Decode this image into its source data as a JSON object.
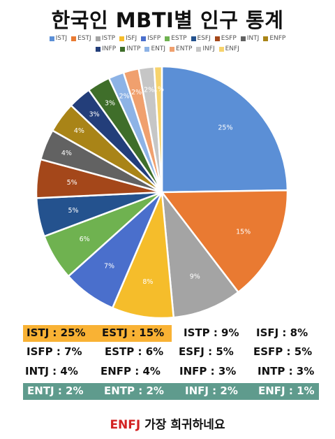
{
  "title": "한국인 MBTI별 인구 통계",
  "chart_data": {
    "type": "pie",
    "title": "한국인 MBTI별 인구 통계",
    "legend_position": "top",
    "slices": [
      {
        "name": "ISTJ",
        "value": 25,
        "label": "25%",
        "color": "#5b8fd6"
      },
      {
        "name": "ESTJ",
        "value": 15,
        "label": "15%",
        "color": "#e97a32"
      },
      {
        "name": "ISTP",
        "value": 9,
        "label": "9%",
        "color": "#a4a4a4"
      },
      {
        "name": "ISFJ",
        "value": 8,
        "label": "8%",
        "color": "#f5bd2b"
      },
      {
        "name": "ISFP",
        "value": 7,
        "label": "7%",
        "color": "#4a6fcc"
      },
      {
        "name": "ESTP",
        "value": 6,
        "label": "6%",
        "color": "#6fb250"
      },
      {
        "name": "ESFJ",
        "value": 5,
        "label": "5%",
        "color": "#24528e"
      },
      {
        "name": "ESFP",
        "value": 5,
        "label": "5%",
        "color": "#a4471a"
      },
      {
        "name": "INTJ",
        "value": 4,
        "label": "4%",
        "color": "#626262"
      },
      {
        "name": "ENFP",
        "value": 4,
        "label": "4%",
        "color": "#a98417"
      },
      {
        "name": "INFP",
        "value": 3,
        "label": "3%",
        "color": "#233e7a"
      },
      {
        "name": "INTP",
        "value": 3,
        "label": "3%",
        "color": "#3f6e2a"
      },
      {
        "name": "ENTJ",
        "value": 2,
        "label": "2%",
        "color": "#8db3e6"
      },
      {
        "name": "ENTP",
        "value": 2,
        "label": "2%",
        "color": "#f0a06e"
      },
      {
        "name": "INFJ",
        "value": 2,
        "label": "2%",
        "color": "#c6c6c6"
      },
      {
        "name": "ENFJ",
        "value": 1,
        "label": "1%",
        "color": "#f7d36c"
      }
    ]
  },
  "summary": {
    "rows": [
      [
        "ISTJ : 25%",
        "ESTJ : 15%",
        "ISTP : 9%",
        "ISFJ : 8%"
      ],
      [
        "ISFP : 7%",
        "ESTP : 6%",
        "ESFJ : 5%",
        "ESFP : 5%"
      ],
      [
        "INTJ : 4%",
        "ENFP : 4%",
        "INFP : 3%",
        "INTP : 3%"
      ],
      [
        "ENTJ : 2%",
        "ENTP : 2%",
        "INFJ : 2%",
        "ENFJ : 1%"
      ]
    ],
    "highlight_colors": {
      "top": "#f9b234",
      "bottom": "#5f9b8d"
    }
  },
  "footer": {
    "highlight": "ENFJ",
    "rest": " 가장 희귀하네요"
  }
}
